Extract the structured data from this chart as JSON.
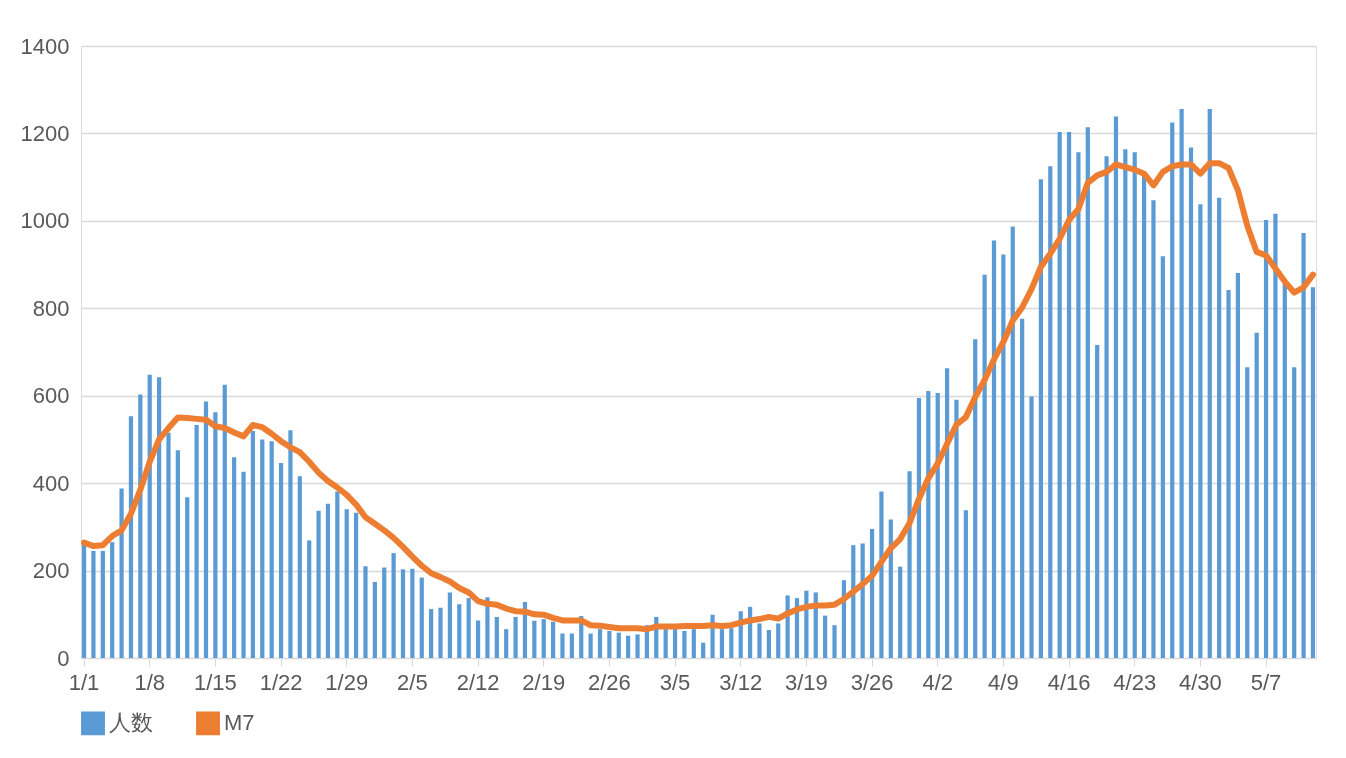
{
  "chart_data": {
    "type": "bar",
    "categories": [
      "1/1",
      null,
      null,
      null,
      null,
      null,
      null,
      "1/8",
      null,
      null,
      null,
      null,
      null,
      null,
      "1/15",
      null,
      null,
      null,
      null,
      null,
      null,
      "1/22",
      null,
      null,
      null,
      null,
      null,
      null,
      "1/29",
      null,
      null,
      null,
      null,
      null,
      null,
      "2/5",
      null,
      null,
      null,
      null,
      null,
      null,
      "2/12",
      null,
      null,
      null,
      null,
      null,
      null,
      "2/19",
      null,
      null,
      null,
      null,
      null,
      null,
      "2/26",
      null,
      null,
      null,
      null,
      null,
      null,
      "3/5",
      null,
      null,
      null,
      null,
      null,
      null,
      "3/12",
      null,
      null,
      null,
      null,
      null,
      null,
      "3/19",
      null,
      null,
      null,
      null,
      null,
      null,
      "3/26",
      null,
      null,
      null,
      null,
      null,
      null,
      "4/2",
      null,
      null,
      null,
      null,
      null,
      null,
      "4/9",
      null,
      null,
      null,
      null,
      null,
      null,
      "4/16",
      null,
      null,
      null,
      null,
      null,
      null,
      "4/23",
      null,
      null,
      null,
      null,
      null,
      null,
      "4/30",
      null,
      null,
      null,
      null,
      null,
      null,
      "5/7",
      null,
      null,
      null,
      null,
      null
    ],
    "series": [
      {
        "name": "人数",
        "color": "#5b9bd5",
        "values": [
          260,
          245,
          245,
          265,
          388,
          553,
          603,
          648,
          642,
          515,
          475,
          368,
          533,
          587,
          562,
          625,
          459,
          426,
          519,
          500,
          496,
          446,
          521,
          416,
          269,
          337,
          353,
          381,
          340,
          332,
          210,
          174,
          207,
          240,
          203,
          204,
          184,
          112,
          115,
          150,
          123,
          137,
          86,
          139,
          94,
          66,
          94,
          128,
          85,
          89,
          83,
          56,
          56,
          96,
          56,
          66,
          62,
          58,
          51,
          54,
          75,
          94,
          66,
          66,
          62,
          66,
          35,
          99,
          66,
          68,
          107,
          117,
          79,
          64,
          79,
          143,
          137,
          154,
          150,
          97,
          75,
          178,
          258,
          262,
          295,
          381,
          317,
          209,
          427,
          595,
          611,
          606,
          663,
          591,
          338,
          729,
          877,
          955,
          923,
          987,
          776,
          598,
          1095,
          1125,
          1203,
          1203,
          1157,
          1214,
          716,
          1148,
          1239,
          1164,
          1157,
          1108,
          1047,
          919,
          1225,
          1256,
          1168,
          1038,
          1256,
          1053,
          842,
          881,
          665,
          744,
          1002,
          1016,
          861,
          665,
          972,
          848
        ]
      },
      {
        "name": "M7",
        "type": "line",
        "color": "#ed7d31",
        "values": [
          264,
          256,
          258,
          279,
          292,
          330,
          385,
          449,
          500,
          526,
          550,
          549,
          547,
          545,
          530,
          526,
          516,
          507,
          533,
          528,
          513,
          496,
          482,
          471,
          449,
          424,
          405,
          390,
          373,
          351,
          322,
          307,
          292,
          275,
          254,
          232,
          211,
          194,
          185,
          175,
          160,
          150,
          130,
          124,
          122,
          113,
          107,
          106,
          100,
          99,
          92,
          86,
          86,
          86,
          75,
          74,
          71,
          68,
          68,
          68,
          66,
          72,
          72,
          72,
          73,
          73,
          73,
          75,
          73,
          75,
          81,
          86,
          89,
          94,
          90,
          102,
          111,
          117,
          120,
          120,
          122,
          135,
          152,
          169,
          188,
          220,
          251,
          272,
          309,
          364,
          411,
          445,
          490,
          534,
          551,
          597,
          636,
          683,
          723,
          772,
          802,
          844,
          895,
          925,
          959,
          1002,
          1027,
          1087,
          1104,
          1112,
          1129,
          1123,
          1117,
          1108,
          1081,
          1112,
          1125,
          1129,
          1129,
          1108,
          1132,
          1132,
          1121,
          1070,
          989,
          929,
          921,
          891,
          861,
          836,
          848,
          877
        ]
      }
    ],
    "ylim": [
      0,
      1400
    ],
    "yticks": [
      0,
      200,
      400,
      600,
      800,
      1000,
      1200,
      1400
    ],
    "grid": "y",
    "legend": "bottom",
    "marker": "none",
    "line_style": "solid"
  }
}
